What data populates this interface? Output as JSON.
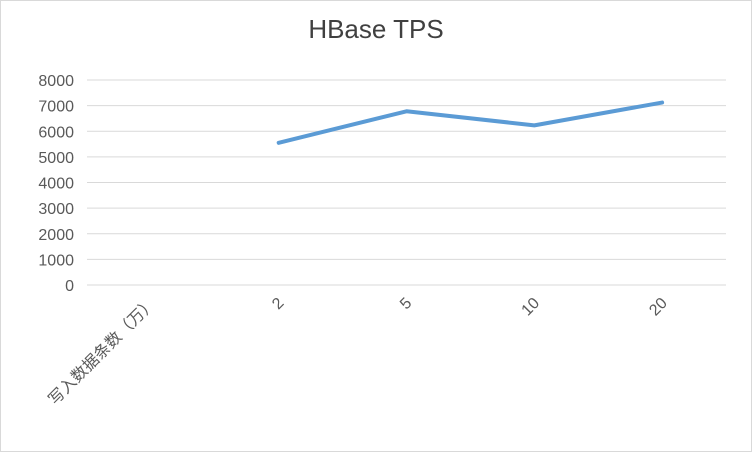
{
  "chart_data": {
    "type": "line",
    "title": "HBase TPS",
    "categories": [
      "写入数据条数（万）",
      "2",
      "5",
      "10",
      "20"
    ],
    "series": [
      {
        "values": [
          null,
          5550,
          6780,
          6230,
          7120
        ]
      }
    ],
    "xlabel": "",
    "ylabel": "",
    "ylim": [
      0,
      8000
    ],
    "yticks": [
      "0",
      "1000",
      "2000",
      "3000",
      "4000",
      "5000",
      "6000",
      "7000",
      "8000"
    ],
    "grid": true,
    "legend": "none",
    "colors": {
      "line": "#5b9bd5",
      "grid": "#d9d9d9",
      "text": "#595959",
      "title": "#404040"
    }
  }
}
